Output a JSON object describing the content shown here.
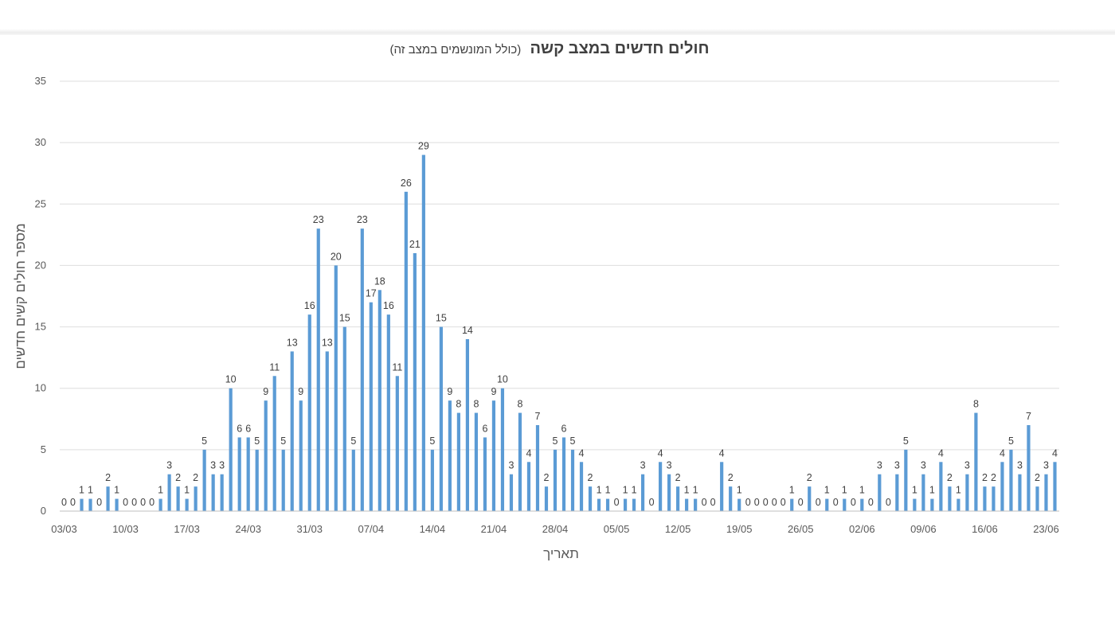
{
  "chart_data": {
    "type": "bar",
    "title": "חולים חדשים במצב קשה",
    "subtitle": "(כולל המונשמים במצב זה)",
    "xlabel": "תאריך",
    "ylabel": "מספר חולים קשים חדשים",
    "ylim": [
      0,
      35
    ],
    "yticks": [
      0,
      5,
      10,
      15,
      20,
      25,
      30,
      35
    ],
    "grid": true,
    "legend": "none",
    "bar_color": "#5b9bd5",
    "start_date": "03/03",
    "x_tick_labels": [
      "03/03",
      "10/03",
      "17/03",
      "24/03",
      "31/03",
      "07/04",
      "14/04",
      "21/04",
      "28/04",
      "05/05",
      "12/05",
      "19/05",
      "26/05",
      "02/06",
      "09/06",
      "16/06",
      "23/06"
    ],
    "values": [
      0,
      0,
      1,
      1,
      0,
      2,
      1,
      0,
      0,
      0,
      0,
      1,
      3,
      2,
      1,
      2,
      5,
      3,
      3,
      10,
      6,
      6,
      5,
      9,
      11,
      5,
      13,
      9,
      16,
      23,
      13,
      20,
      15,
      5,
      23,
      17,
      18,
      16,
      11,
      26,
      21,
      29,
      5,
      15,
      9,
      8,
      14,
      8,
      6,
      9,
      10,
      3,
      8,
      4,
      7,
      2,
      5,
      6,
      5,
      4,
      2,
      1,
      1,
      0,
      1,
      1,
      3,
      0,
      4,
      3,
      2,
      1,
      1,
      0,
      0,
      4,
      2,
      1,
      0,
      0,
      0,
      0,
      0,
      1,
      0,
      2,
      0,
      1,
      0,
      1,
      0,
      1,
      0,
      3,
      0,
      3,
      5,
      1,
      3,
      1,
      4,
      2,
      1,
      3,
      8,
      2,
      2,
      4,
      5,
      3,
      7,
      2,
      3,
      4
    ]
  }
}
